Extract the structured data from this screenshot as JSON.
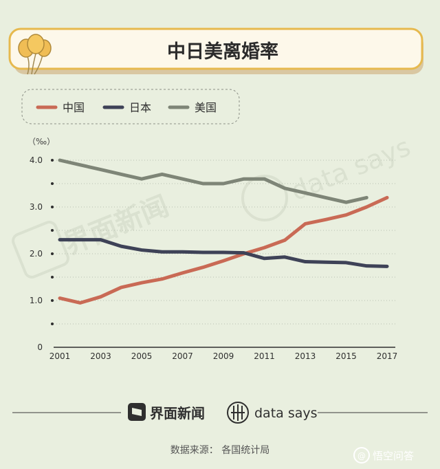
{
  "header": {
    "title": "中日美离婚率"
  },
  "chart_data": {
    "type": "line",
    "ylabel": "（‰）",
    "ylim": [
      0,
      4
    ],
    "yticks": [
      "0",
      "1.0",
      "2.0",
      "3.0",
      "4.0"
    ],
    "x": [
      2001,
      2002,
      2003,
      2004,
      2005,
      2006,
      2007,
      2008,
      2009,
      2010,
      2011,
      2012,
      2013,
      2014,
      2015,
      2016,
      2017
    ],
    "xticks": [
      "2001",
      "2003",
      "2005",
      "2007",
      "2009",
      "2011",
      "2013",
      "2015",
      "2017"
    ],
    "grid": true,
    "legend_position": "top-left",
    "series": [
      {
        "name": "中国",
        "color": "#c96a55",
        "x": [
          2001,
          2002,
          2003,
          2004,
          2005,
          2006,
          2007,
          2008,
          2009,
          2010,
          2011,
          2012,
          2013,
          2014,
          2015,
          2016,
          2017
        ],
        "values": [
          1.05,
          0.95,
          1.08,
          1.28,
          1.38,
          1.46,
          1.59,
          1.71,
          1.85,
          2.0,
          2.13,
          2.29,
          2.64,
          2.73,
          2.83,
          3.0,
          3.2
        ]
      },
      {
        "name": "日本",
        "color": "#3e4257",
        "x": [
          2001,
          2002,
          2003,
          2004,
          2005,
          2006,
          2007,
          2008,
          2009,
          2010,
          2011,
          2012,
          2013,
          2014,
          2015,
          2016,
          2017
        ],
        "values": [
          2.3,
          2.3,
          2.3,
          2.16,
          2.08,
          2.04,
          2.04,
          2.03,
          2.03,
          2.02,
          1.9,
          1.93,
          1.83,
          1.82,
          1.81,
          1.74,
          1.73
        ]
      },
      {
        "name": "美国",
        "color": "#7e8577",
        "x": [
          2001,
          2002,
          2003,
          2004,
          2005,
          2006,
          2007,
          2008,
          2009,
          2010,
          2011,
          2012,
          2013,
          2014,
          2015,
          2016
        ],
        "values": [
          4.0,
          3.9,
          3.8,
          3.7,
          3.6,
          3.7,
          3.6,
          3.5,
          3.5,
          3.6,
          3.6,
          3.4,
          3.3,
          3.2,
          3.1,
          3.2
        ]
      }
    ]
  },
  "watermark": {
    "jiemian": "界面新闻",
    "datasays": "data says"
  },
  "footer": {
    "brand_name": "界面新闻",
    "datasays_label": "data says",
    "source": "数据来源： 各国统计局",
    "corner_badge": "悟空问答"
  }
}
